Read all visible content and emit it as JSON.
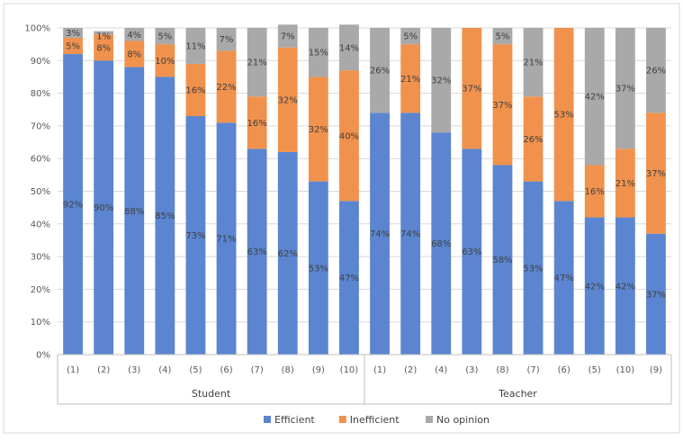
{
  "chart_data": {
    "type": "bar",
    "stacked": true,
    "percent_axis": true,
    "ylim": [
      0,
      100
    ],
    "y_ticks": [
      "0%",
      "10%",
      "20%",
      "30%",
      "40%",
      "50%",
      "60%",
      "70%",
      "80%",
      "90%",
      "100%"
    ],
    "grid": true,
    "legend_position": "bottom",
    "groups": [
      {
        "name": "Student",
        "categories": [
          "(1)",
          "(2)",
          "(3)",
          "(4)",
          "(5)",
          "(6)",
          "(7)",
          "(8)",
          "(9)",
          "(10)"
        ]
      },
      {
        "name": "Teacher",
        "categories": [
          "(1)",
          "(2)",
          "(4)",
          "(3)",
          "(8)",
          "(7)",
          "(6)",
          "(5)",
          "(10)",
          "(9)"
        ]
      }
    ],
    "series": [
      {
        "name": "Efficient",
        "color": "#5b85d0",
        "values": [
          92,
          90,
          88,
          85,
          73,
          71,
          63,
          62,
          53,
          47,
          74,
          74,
          68,
          63,
          58,
          53,
          47,
          42,
          42,
          37
        ],
        "labels": [
          "92%",
          "90%",
          "88%",
          "85%",
          "73%",
          "71%",
          "63%",
          "62%",
          "53%",
          "47%",
          "74%",
          "74%",
          "68%",
          "63%",
          "58%",
          "53%",
          "47%",
          "42%",
          "42%",
          "37%"
        ]
      },
      {
        "name": "Inefficient",
        "color": "#f0924d",
        "values": [
          5,
          8,
          8,
          10,
          16,
          22,
          16,
          32,
          32,
          40,
          0,
          21,
          0,
          37,
          37,
          26,
          53,
          16,
          21,
          37
        ],
        "labels": [
          "5%",
          "8%",
          "8%",
          "10%",
          "16%",
          "22%",
          "16%",
          "32%",
          "32%",
          "40%",
          "",
          "21%",
          "",
          "37%",
          "37%",
          "26%",
          "53%",
          "16%",
          "21%",
          "37%"
        ]
      },
      {
        "name": "No opinion",
        "color": "#a9a9a9",
        "values": [
          3,
          1,
          4,
          5,
          11,
          7,
          21,
          7,
          15,
          14,
          26,
          5,
          32,
          0,
          5,
          21,
          0,
          42,
          37,
          26
        ],
        "labels": [
          "3%",
          "1%",
          "4%",
          "5%",
          "11%",
          "7%",
          "21%",
          "7%",
          "15%",
          "14%",
          "26%",
          "5%",
          "32%",
          "",
          "5%",
          "21%",
          "",
          "42%",
          "37%",
          "26%"
        ]
      }
    ]
  }
}
